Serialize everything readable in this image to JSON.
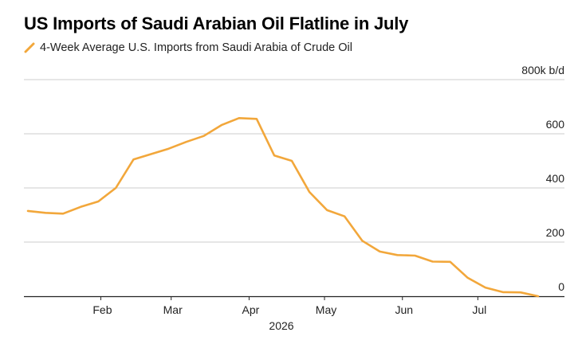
{
  "title": "US Imports of Saudi Arabian Oil Flatline in July",
  "colors": {
    "series": "#F2A73B",
    "grid": "#cccccc",
    "axis": "#222222",
    "text": "#222222"
  },
  "chart_data": {
    "type": "line",
    "title": "US Imports of Saudi Arabian Oil Flatline in July",
    "xlabel": "2026",
    "ylabel": "",
    "y_unit": "k b/d",
    "ylim": [
      0,
      800
    ],
    "y_ticks": [
      0,
      200,
      400,
      600,
      800
    ],
    "y_tick_labels": [
      "0",
      "200",
      "400",
      "600",
      "800k b/d"
    ],
    "y_axis_side": "right",
    "grid": true,
    "legend_position": "top-left",
    "x_range": [
      "2026-01-03",
      "2026-08-01"
    ],
    "x_ticks": [
      "2026-02-01",
      "2026-03-01",
      "2026-04-01",
      "2026-05-01",
      "2026-06-01",
      "2026-07-01"
    ],
    "x_tick_labels": [
      "Feb",
      "Mar",
      "Apr",
      "May",
      "Jun",
      "Jul"
    ],
    "series": [
      {
        "name": "4-Week Average U.S. Imports from Saudi Arabia of Crude Oil",
        "x": [
          "2026-01-03",
          "2026-01-10",
          "2026-01-17",
          "2026-01-24",
          "2026-01-31",
          "2026-02-07",
          "2026-02-14",
          "2026-02-21",
          "2026-02-28",
          "2026-03-07",
          "2026-03-14",
          "2026-03-21",
          "2026-03-28",
          "2026-04-04",
          "2026-04-11",
          "2026-04-18",
          "2026-04-25",
          "2026-05-02",
          "2026-05-09",
          "2026-05-16",
          "2026-05-23",
          "2026-05-30",
          "2026-06-06",
          "2026-06-13",
          "2026-06-20",
          "2026-06-27",
          "2026-07-04",
          "2026-07-11",
          "2026-07-18",
          "2026-07-25"
        ],
        "values": [
          315,
          308,
          305,
          330,
          350,
          400,
          505,
          525,
          545,
          570,
          592,
          632,
          658,
          655,
          520,
          500,
          385,
          318,
          295,
          205,
          165,
          152,
          150,
          128,
          127,
          68,
          32,
          15,
          14,
          0
        ]
      }
    ]
  }
}
